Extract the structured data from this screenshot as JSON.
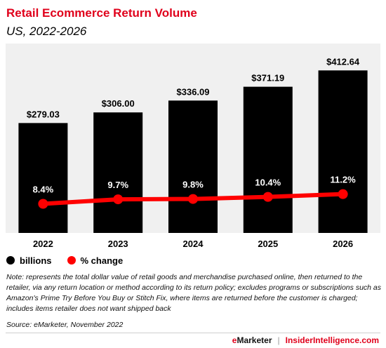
{
  "header": {
    "title": "Retail Ecommerce Return Volume",
    "subtitle": "US, 2022-2026"
  },
  "chart_data": {
    "type": "bar",
    "categories": [
      "2022",
      "2023",
      "2024",
      "2025",
      "2026"
    ],
    "series": [
      {
        "name": "billions",
        "type": "bar",
        "values": [
          279.03,
          306.0,
          336.09,
          371.19,
          412.64
        ],
        "labels": [
          "$279.03",
          "$306.00",
          "$336.09",
          "$371.19",
          "$412.64"
        ],
        "color": "#000000"
      },
      {
        "name": "% change",
        "type": "line",
        "values": [
          8.4,
          9.7,
          9.8,
          10.4,
          11.2
        ],
        "labels": [
          "8.4%",
          "9.7%",
          "9.8%",
          "10.4%",
          "11.2%"
        ],
        "color": "#ff0000"
      }
    ],
    "ylim": [
      0,
      440
    ],
    "line_ylim": [
      0,
      50
    ],
    "grid": false,
    "legend_position": "bottom-left"
  },
  "legend": {
    "billions_label": "billions",
    "pct_label": "% change",
    "billions_color": "#000000",
    "pct_color": "#ff0000"
  },
  "note": "Note: represents the total dollar value of retail goods and merchandise purchased online, then returned to the retailer, via any return location or method according to its return policy; excludes programs or subscriptions such as Amazon's Prime Try Before You Buy or Stitch Fix, where items are returned before the customer is charged; includes items retailer does not want shipped back",
  "source": "Source: eMarketer, November 2022",
  "footer": {
    "brand_e": "e",
    "brand_rest": "Marketer",
    "separator": "|",
    "brand2": "InsiderIntelligence.com"
  },
  "colors": {
    "title": "#e0001b",
    "plot_background": "#f0f0f0"
  }
}
